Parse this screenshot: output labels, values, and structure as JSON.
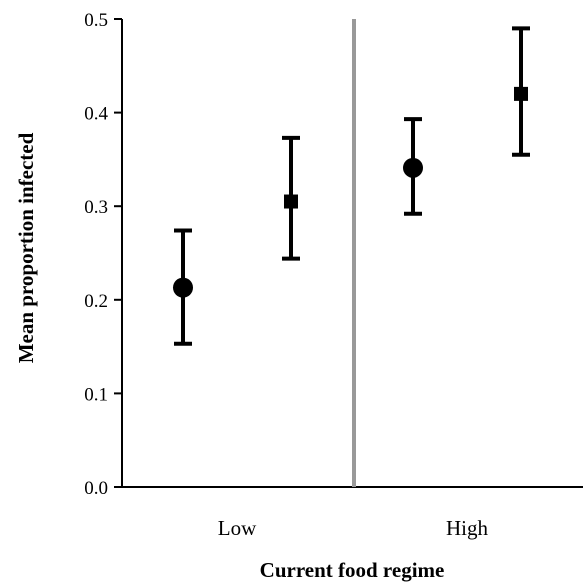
{
  "chart_data": {
    "type": "scatter",
    "xlabel": "Current food regime",
    "ylabel": "Mean proportion infected",
    "categories": [
      "Low",
      "High"
    ],
    "ylim": [
      0.0,
      0.5
    ],
    "yticks": [
      "0.0",
      "0.1",
      "0.2",
      "0.3",
      "0.4",
      "0.5"
    ],
    "grid": false,
    "legend": "none",
    "divider": true,
    "series": [
      {
        "marker": "circle",
        "values": [
          0.213,
          0.341
        ],
        "error_lower": [
          0.153,
          0.292
        ],
        "error_upper": [
          0.274,
          0.393
        ]
      },
      {
        "marker": "square",
        "values": [
          0.305,
          0.42
        ],
        "error_lower": [
          0.244,
          0.355
        ],
        "error_upper": [
          0.373,
          0.49
        ]
      }
    ],
    "colors": {
      "marks": "#000000",
      "divider": "#999999"
    }
  }
}
